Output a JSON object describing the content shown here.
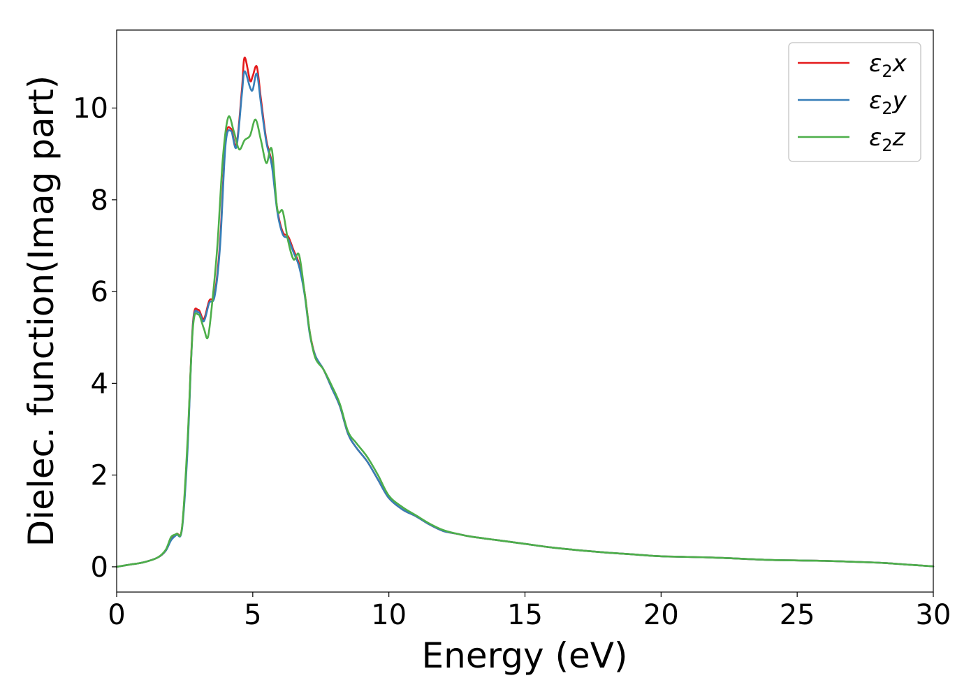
{
  "chart_data": {
    "type": "line",
    "title": "",
    "xlabel": "Energy (eV)",
    "ylabel": "Dielec. function(Imag part)",
    "xlim": [
      0,
      30
    ],
    "ylim": [
      -0.55,
      11.7
    ],
    "xticks": [
      0,
      5,
      10,
      15,
      20,
      25,
      30
    ],
    "xtick_labels": [
      "0",
      "5",
      "10",
      "15",
      "20",
      "25",
      "30"
    ],
    "yticks": [
      0,
      2,
      4,
      6,
      8,
      10
    ],
    "ytick_labels": [
      "0",
      "2",
      "4",
      "6",
      "8",
      "10"
    ],
    "grid": false,
    "legend_position": "top-right",
    "legend": {
      "base": "ε",
      "subscript": "2"
    },
    "series": [
      {
        "name": "ε2x",
        "label_suffix": "x",
        "color": "#e41a1c",
        "x": [
          0,
          0.5,
          1.0,
          1.5,
          1.8,
          2.0,
          2.2,
          2.4,
          2.6,
          2.8,
          3.0,
          3.2,
          3.4,
          3.6,
          3.8,
          4.0,
          4.2,
          4.4,
          4.6,
          4.7,
          4.9,
          5.0,
          5.15,
          5.3,
          5.5,
          5.7,
          5.9,
          6.1,
          6.3,
          6.5,
          6.7,
          6.9,
          7.1,
          7.3,
          7.6,
          7.9,
          8.2,
          8.5,
          8.8,
          9.2,
          9.6,
          10.0,
          10.5,
          11.0,
          11.5,
          12.0,
          12.5,
          13.0,
          14.0,
          15.0,
          16.0,
          17.0,
          18.0,
          19.0,
          20.0,
          22.0,
          24.0,
          26.0,
          28.0,
          29.0,
          30.0
        ],
        "y": [
          0.0,
          0.05,
          0.1,
          0.2,
          0.35,
          0.6,
          0.72,
          0.85,
          2.6,
          5.3,
          5.6,
          5.4,
          5.8,
          5.95,
          7.1,
          9.3,
          9.55,
          9.2,
          10.4,
          11.1,
          10.6,
          10.7,
          10.9,
          10.2,
          9.3,
          8.8,
          7.8,
          7.3,
          7.2,
          6.9,
          6.6,
          6.0,
          5.1,
          4.6,
          4.3,
          3.9,
          3.5,
          2.9,
          2.6,
          2.3,
          1.9,
          1.5,
          1.25,
          1.1,
          0.92,
          0.78,
          0.72,
          0.66,
          0.58,
          0.5,
          0.42,
          0.36,
          0.31,
          0.27,
          0.23,
          0.2,
          0.15,
          0.13,
          0.09,
          0.05,
          0.01
        ]
      },
      {
        "name": "ε2y",
        "label_suffix": "y",
        "color": "#377eb8",
        "x": [
          0,
          0.5,
          1.0,
          1.5,
          1.8,
          2.0,
          2.2,
          2.4,
          2.6,
          2.8,
          3.0,
          3.2,
          3.4,
          3.6,
          3.8,
          4.0,
          4.2,
          4.4,
          4.6,
          4.7,
          4.9,
          5.0,
          5.15,
          5.3,
          5.5,
          5.7,
          5.9,
          6.1,
          6.3,
          6.5,
          6.7,
          6.9,
          7.1,
          7.3,
          7.6,
          7.9,
          8.2,
          8.5,
          8.8,
          9.2,
          9.6,
          10.0,
          10.5,
          11.0,
          11.5,
          12.0,
          12.5,
          13.0,
          14.0,
          15.0,
          16.0,
          17.0,
          18.0,
          19.0,
          20.0,
          22.0,
          24.0,
          26.0,
          28.0,
          29.0,
          30.0
        ],
        "y": [
          0.0,
          0.05,
          0.1,
          0.2,
          0.35,
          0.58,
          0.7,
          0.82,
          2.5,
          5.25,
          5.55,
          5.35,
          5.75,
          5.9,
          7.0,
          9.2,
          9.5,
          9.15,
          10.3,
          10.8,
          10.45,
          10.4,
          10.75,
          10.1,
          9.25,
          8.75,
          7.75,
          7.25,
          7.15,
          6.85,
          6.55,
          5.95,
          5.05,
          4.6,
          4.3,
          3.9,
          3.5,
          2.9,
          2.6,
          2.3,
          1.9,
          1.5,
          1.25,
          1.1,
          0.92,
          0.78,
          0.72,
          0.66,
          0.58,
          0.5,
          0.42,
          0.36,
          0.31,
          0.27,
          0.23,
          0.2,
          0.15,
          0.13,
          0.09,
          0.05,
          0.01
        ]
      },
      {
        "name": "ε2z",
        "label_suffix": "z",
        "color": "#4daf4a",
        "x": [
          0,
          0.5,
          1.0,
          1.5,
          1.8,
          2.0,
          2.2,
          2.4,
          2.6,
          2.8,
          3.0,
          3.2,
          3.35,
          3.5,
          3.7,
          3.9,
          4.1,
          4.3,
          4.5,
          4.7,
          4.9,
          5.1,
          5.3,
          5.5,
          5.7,
          5.9,
          6.1,
          6.3,
          6.5,
          6.7,
          6.9,
          7.1,
          7.3,
          7.6,
          7.9,
          8.2,
          8.5,
          8.8,
          9.2,
          9.6,
          10.0,
          10.5,
          11.0,
          11.5,
          12.0,
          12.5,
          13.0,
          14.0,
          15.0,
          16.0,
          17.0,
          18.0,
          19.0,
          20.0,
          22.0,
          24.0,
          26.0,
          28.0,
          29.0,
          30.0
        ],
        "y": [
          0.0,
          0.05,
          0.1,
          0.2,
          0.37,
          0.65,
          0.72,
          0.85,
          2.7,
          5.2,
          5.5,
          5.2,
          5.0,
          5.7,
          7.0,
          8.9,
          9.8,
          9.5,
          9.1,
          9.3,
          9.4,
          9.75,
          9.3,
          8.8,
          9.1,
          7.8,
          7.75,
          7.1,
          6.7,
          6.8,
          6.0,
          5.1,
          4.55,
          4.3,
          3.95,
          3.55,
          2.95,
          2.7,
          2.4,
          2.0,
          1.55,
          1.3,
          1.12,
          0.94,
          0.8,
          0.72,
          0.66,
          0.58,
          0.5,
          0.42,
          0.36,
          0.31,
          0.27,
          0.23,
          0.2,
          0.15,
          0.13,
          0.09,
          0.05,
          0.01
        ]
      }
    ]
  }
}
